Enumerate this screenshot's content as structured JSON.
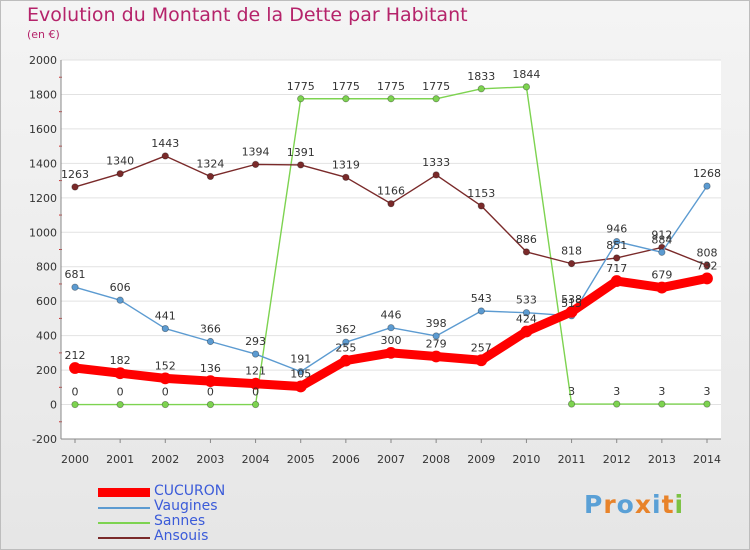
{
  "title": "Evolution du Montant de la Dette par Habitant",
  "subtitle": "(en €)",
  "logo": {
    "text": "Proxiti",
    "letters": [
      "P",
      "r",
      "o",
      "x",
      "i",
      "t",
      "i"
    ],
    "colors": [
      "#5aa0d6",
      "#e8832a",
      "#5aa0d6",
      "#e8832a",
      "#5aa0d6",
      "#e8832a",
      "#7cc243"
    ]
  },
  "chart_data": {
    "type": "line",
    "title": "Evolution du Montant de la Dette par Habitant",
    "ylabel": "(en €)",
    "x": [
      "2000",
      "2001",
      "2002",
      "2003",
      "2004",
      "2005",
      "2006",
      "2007",
      "2008",
      "2009",
      "2010",
      "2011",
      "2012",
      "2013",
      "2014"
    ],
    "ylim": [
      -200,
      2000
    ],
    "yticks": [
      "-200",
      "0",
      "200",
      "400",
      "600",
      "800",
      "1000",
      "1200",
      "1400",
      "1600",
      "1800",
      "2000"
    ],
    "grid": true,
    "legend_position": "bottom-left",
    "series": [
      {
        "name": "CUCURON",
        "color": "#ff0000",
        "values": [
          212,
          182,
          152,
          136,
          121,
          105,
          255,
          300,
          279,
          257,
          424,
          538,
          717,
          679,
          732
        ],
        "labels": [
          "212",
          "182",
          "152",
          "136",
          "121",
          "105",
          "255",
          "300",
          "279",
          "257",
          "424",
          "538",
          "717",
          "679",
          "732"
        ]
      },
      {
        "name": "Vaugines",
        "color": "#5c9bd1",
        "values": [
          681,
          606,
          441,
          366,
          293,
          191,
          362,
          446,
          398,
          543,
          533,
          515,
          946,
          884,
          1268
        ],
        "labels": [
          "681",
          "606",
          "441",
          "366",
          "293",
          "191",
          "362",
          "446",
          "398",
          "543",
          "533",
          "515",
          "946",
          "884",
          "1268"
        ]
      },
      {
        "name": "Sannes",
        "color": "#7dd350",
        "values": [
          0,
          0,
          0,
          0,
          0,
          1775,
          1775,
          1775,
          1775,
          1833,
          1844,
          3,
          3,
          3,
          3
        ],
        "labels": [
          "0",
          "0",
          "0",
          "0",
          "0",
          "1775",
          "1775",
          "1775",
          "1775",
          "1833",
          "1844",
          "3",
          "3",
          "3",
          "3"
        ]
      },
      {
        "name": "Ansouis",
        "color": "#7a2a2a",
        "values": [
          1263,
          1340,
          1443,
          1324,
          1394,
          1391,
          1319,
          1166,
          1333,
          1153,
          886,
          818,
          851,
          912,
          808
        ],
        "labels": [
          "1263",
          "1340",
          "1443",
          "1324",
          "1394",
          "1391",
          "1319",
          "1166",
          "1333",
          "1153",
          "886",
          "818",
          "851",
          "912",
          "808"
        ]
      }
    ]
  }
}
